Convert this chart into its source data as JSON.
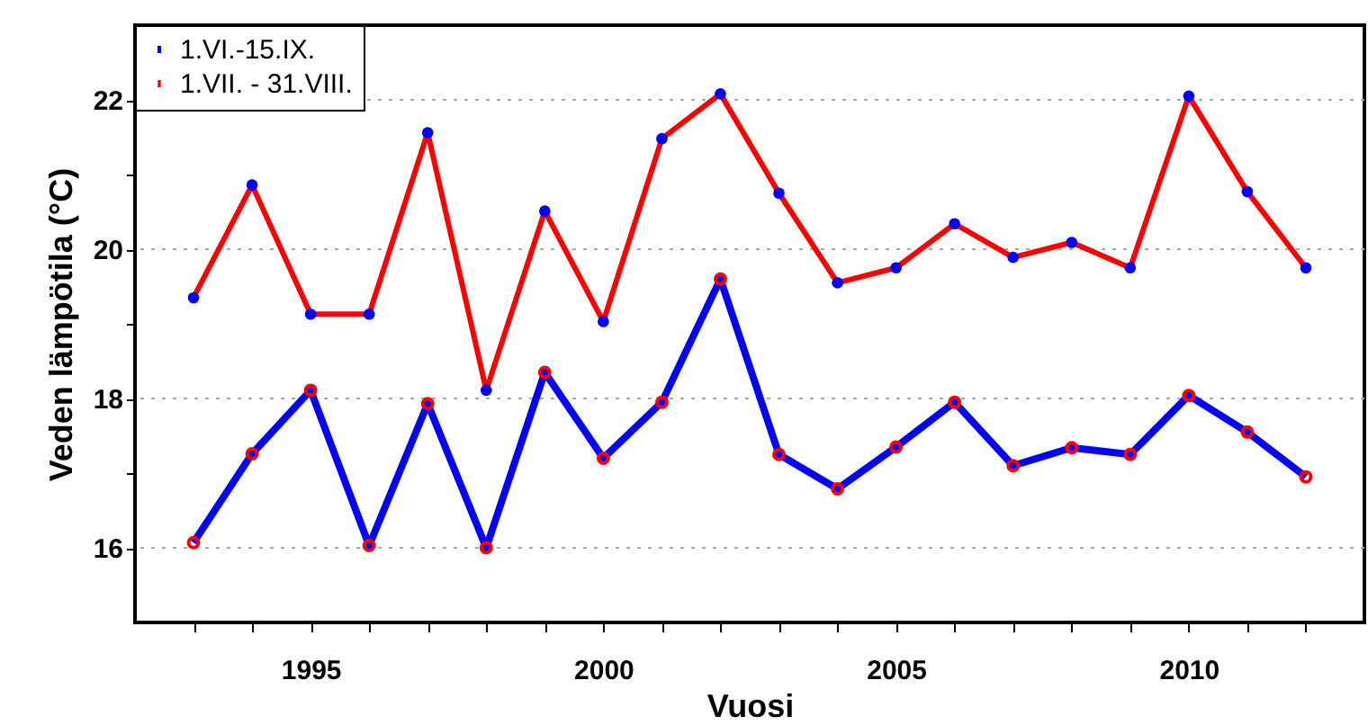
{
  "chart_data": {
    "type": "line",
    "xlabel": "Vuosi",
    "ylabel": "Veden lämpötila (°C)",
    "x": [
      1993,
      1994,
      1995,
      1996,
      1997,
      1998,
      1999,
      2000,
      2001,
      2002,
      2003,
      2004,
      2005,
      2006,
      2007,
      2008,
      2009,
      2010,
      2011,
      2012
    ],
    "series": [
      {
        "name": "1.VI.-15.IX.",
        "color": "#0000ff",
        "values": [
          16.07,
          17.26,
          18.11,
          16.03,
          17.93,
          16.0,
          18.35,
          17.2,
          17.95,
          19.6,
          17.25,
          16.79,
          17.35,
          17.95,
          17.1,
          17.34,
          17.25,
          18.04,
          17.55,
          16.95
        ]
      },
      {
        "name": "1.VII. - 31.VIII.",
        "color": "#ff0000",
        "values": [
          19.35,
          20.86,
          19.13,
          19.13,
          21.56,
          18.11,
          20.51,
          19.03,
          21.48,
          22.08,
          20.75,
          19.55,
          19.75,
          20.34,
          19.89,
          20.09,
          19.75,
          22.05,
          20.77,
          19.75
        ]
      }
    ],
    "xlim": [
      1992,
      2013
    ],
    "ylim": [
      15,
      23
    ],
    "xticks": [
      {
        "value": 1993,
        "label": null
      },
      {
        "value": 1994,
        "label": null
      },
      1995,
      {
        "value": 1996,
        "label": null
      },
      {
        "value": 1997,
        "label": null
      },
      {
        "value": 1998,
        "label": null
      },
      {
        "value": 1999,
        "label": null
      },
      2000,
      {
        "value": 2001,
        "label": null
      },
      {
        "value": 2002,
        "label": null
      },
      {
        "value": 2003,
        "label": null
      },
      {
        "value": 2004,
        "label": null
      },
      2005,
      {
        "value": 2006,
        "label": null
      },
      {
        "value": 2007,
        "label": null
      },
      {
        "value": 2008,
        "label": null
      },
      {
        "value": 2009,
        "label": null
      },
      2010,
      {
        "value": 2011,
        "label": null
      },
      {
        "value": 2012,
        "label": null
      }
    ],
    "yticks": [
      16,
      {
        "value": 17,
        "label": null
      },
      18,
      {
        "value": 19,
        "label": null
      },
      20,
      {
        "value": 21,
        "label": null
      },
      22
    ],
    "grid": "y",
    "legend": "top left",
    "marker": "circle",
    "line_style": "solid"
  }
}
